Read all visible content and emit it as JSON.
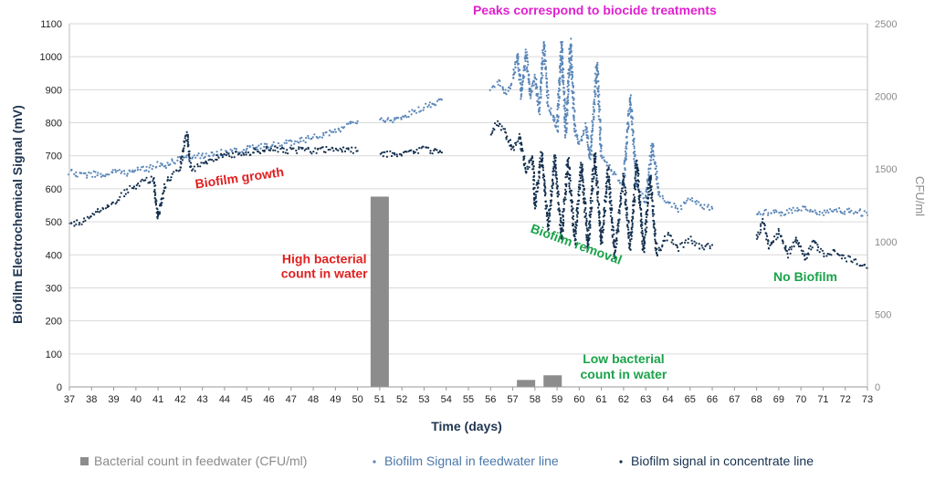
{
  "chart_data": {
    "type": "scatter",
    "title": "",
    "xlabel": "Time (days)",
    "ylabel": "Biofilm  Electrochemical  Signal  (mV)",
    "y2label": "CFU/ml",
    "xlim": [
      37,
      73
    ],
    "ylim": [
      0,
      1100
    ],
    "y2lim": [
      0,
      2500
    ],
    "x_ticks": [
      37,
      38,
      39,
      40,
      41,
      42,
      43,
      44,
      45,
      46,
      47,
      48,
      49,
      50,
      51,
      52,
      53,
      54,
      55,
      56,
      57,
      58,
      59,
      60,
      61,
      62,
      63,
      64,
      65,
      66,
      67,
      68,
      69,
      70,
      71,
      72,
      73
    ],
    "y_ticks": [
      0,
      100,
      200,
      300,
      400,
      500,
      600,
      700,
      800,
      900,
      1000,
      1100
    ],
    "y2_ticks": [
      0,
      500,
      1000,
      1500,
      2000,
      2500
    ],
    "grid": "horizontal",
    "legend_position": "bottom",
    "colors": {
      "bars": "#8c8c8c",
      "feedwater": "#5a86b8",
      "concentrate": "#14304f",
      "red_anno": "#e02020",
      "green_anno": "#1aa34a",
      "magenta_anno": "#e020d0",
      "grid": "#d9d9d9"
    },
    "series": [
      {
        "name": "Bacterial count in feedwater (CFU/ml)",
        "kind": "bar",
        "axis": "right",
        "points": [
          {
            "x": 51.0,
            "y": 1310
          },
          {
            "x": 57.6,
            "y": 48
          },
          {
            "x": 58.8,
            "y": 80
          }
        ]
      },
      {
        "name": "Biofilm Signal in feedwater line",
        "kind": "dots",
        "axis": "left",
        "segments": [
          [
            [
              37,
              650
            ],
            [
              37.5,
              640
            ],
            [
              38,
              645
            ],
            [
              38.5,
              640
            ],
            [
              39,
              650
            ],
            [
              39.5,
              648
            ],
            [
              40,
              655
            ],
            [
              40.5,
              660
            ],
            [
              41,
              672
            ],
            [
              41.3,
              670
            ],
            [
              41.6,
              680
            ],
            [
              42,
              690
            ],
            [
              42.5,
              695
            ],
            [
              43,
              700
            ],
            [
              43.5,
              705
            ],
            [
              44,
              710
            ],
            [
              44.5,
              715
            ],
            [
              45,
              720
            ],
            [
              45.5,
              725
            ],
            [
              46,
              730
            ],
            [
              46.5,
              735
            ],
            [
              47,
              740
            ],
            [
              47.5,
              748
            ],
            [
              48,
              755
            ],
            [
              48.5,
              765
            ],
            [
              49,
              775
            ],
            [
              49.5,
              790
            ],
            [
              50,
              805
            ]
          ],
          [
            [
              51,
              810
            ],
            [
              51.5,
              805
            ],
            [
              52,
              815
            ],
            [
              52.5,
              830
            ],
            [
              53,
              850
            ],
            [
              53.5,
              860
            ],
            [
              53.8,
              870
            ]
          ],
          [
            [
              56,
              905
            ],
            [
              56.4,
              925
            ],
            [
              56.7,
              890
            ],
            [
              57,
              930
            ],
            [
              57.2,
              1010
            ],
            [
              57.4,
              880
            ],
            [
              57.6,
              1015
            ],
            [
              57.8,
              880
            ],
            [
              58,
              945
            ],
            [
              58.2,
              830
            ],
            [
              58.4,
              1040
            ],
            [
              58.6,
              850
            ],
            [
              58.8,
              830
            ],
            [
              59,
              780
            ],
            [
              59.2,
              1045
            ],
            [
              59.4,
              760
            ],
            [
              59.6,
              1045
            ],
            [
              59.8,
              780
            ],
            [
              60,
              735
            ],
            [
              60.3,
              790
            ],
            [
              60.5,
              690
            ],
            [
              60.8,
              985
            ],
            [
              61,
              700
            ],
            [
              61.5,
              650
            ],
            [
              62,
              610
            ],
            [
              62.3,
              880
            ],
            [
              62.6,
              600
            ],
            [
              63,
              560
            ],
            [
              63.3,
              740
            ],
            [
              63.6,
              580
            ],
            [
              64,
              560
            ],
            [
              64.5,
              540
            ],
            [
              65,
              570
            ],
            [
              65.5,
              550
            ],
            [
              66,
              540
            ]
          ],
          [
            [
              68,
              520
            ],
            [
              68.5,
              530
            ],
            [
              69,
              525
            ],
            [
              69.5,
              535
            ],
            [
              70,
              540
            ],
            [
              70.5,
              530
            ],
            [
              71,
              525
            ],
            [
              71.5,
              540
            ],
            [
              72,
              530
            ],
            [
              72.5,
              535
            ],
            [
              73,
              520
            ]
          ]
        ]
      },
      {
        "name": "Biofilm signal in concentrate line",
        "kind": "dots",
        "axis": "left",
        "segments": [
          [
            [
              37,
              490
            ],
            [
              37.5,
              500
            ],
            [
              38,
              515
            ],
            [
              38.5,
              540
            ],
            [
              39,
              560
            ],
            [
              39.5,
              590
            ],
            [
              40,
              610
            ],
            [
              40.5,
              625
            ],
            [
              40.8,
              630
            ],
            [
              41,
              510
            ],
            [
              41.3,
              610
            ],
            [
              41.6,
              640
            ],
            [
              42,
              660
            ],
            [
              42.3,
              770
            ],
            [
              42.5,
              655
            ],
            [
              43,
              675
            ],
            [
              43.5,
              690
            ],
            [
              44,
              700
            ],
            [
              44.5,
              705
            ],
            [
              45,
              710
            ],
            [
              45.5,
              715
            ],
            [
              46,
              720
            ],
            [
              46.5,
              720
            ],
            [
              47,
              715
            ],
            [
              47.5,
              720
            ],
            [
              48,
              715
            ],
            [
              48.5,
              718
            ],
            [
              49,
              720
            ],
            [
              49.5,
              718
            ],
            [
              50,
              715
            ]
          ],
          [
            [
              51,
              700
            ],
            [
              51.5,
              705
            ],
            [
              52,
              710
            ],
            [
              52.5,
              715
            ],
            [
              53,
              720
            ],
            [
              53.5,
              715
            ],
            [
              53.8,
              710
            ]
          ],
          [
            [
              56,
              770
            ],
            [
              56.3,
              800
            ],
            [
              56.6,
              780
            ],
            [
              57,
              720
            ],
            [
              57.3,
              760
            ],
            [
              57.6,
              650
            ],
            [
              57.9,
              700
            ],
            [
              58,
              540
            ],
            [
              58.3,
              710
            ],
            [
              58.6,
              480
            ],
            [
              58.9,
              700
            ],
            [
              59.2,
              450
            ],
            [
              59.5,
              690
            ],
            [
              59.8,
              440
            ],
            [
              60.1,
              680
            ],
            [
              60.4,
              420
            ],
            [
              60.7,
              710
            ],
            [
              61,
              430
            ],
            [
              61.3,
              660
            ],
            [
              61.6,
              400
            ],
            [
              62,
              640
            ],
            [
              62.3,
              420
            ],
            [
              62.6,
              680
            ],
            [
              62.9,
              410
            ],
            [
              63.2,
              640
            ],
            [
              63.5,
              400
            ],
            [
              64,
              460
            ],
            [
              64.5,
              420
            ],
            [
              65,
              450
            ],
            [
              65.5,
              420
            ],
            [
              66,
              430
            ]
          ],
          [
            [
              68,
              450
            ],
            [
              68.3,
              500
            ],
            [
              68.6,
              420
            ],
            [
              69,
              470
            ],
            [
              69.4,
              400
            ],
            [
              69.8,
              450
            ],
            [
              70.2,
              390
            ],
            [
              70.6,
              440
            ],
            [
              71,
              400
            ],
            [
              71.5,
              410
            ],
            [
              72,
              390
            ],
            [
              72.5,
              380
            ],
            [
              73,
              360
            ]
          ]
        ]
      }
    ],
    "annotations": [
      {
        "text": "Biofilm  growth",
        "x": 44.7,
        "y": 620,
        "color": "red",
        "rotate": -8
      },
      {
        "text": "High bacterial",
        "x": 48.5,
        "y": 375,
        "color": "red",
        "rotate": 0
      },
      {
        "text": "count in water",
        "x": 48.5,
        "y": 330,
        "color": "red",
        "rotate": 0
      },
      {
        "text": "Peaks correspond to biocide treatments",
        "x": 60.7,
        "y": 1127,
        "color": "magenta",
        "rotate": 0
      },
      {
        "text": "Biofilm  removal",
        "x": 59.8,
        "y": 420,
        "color": "green",
        "rotate": 20
      },
      {
        "text": "No Biofilm",
        "x": 70.2,
        "y": 320,
        "color": "green",
        "rotate": 0
      },
      {
        "text": "Low bacterial",
        "x": 62.0,
        "y": 72,
        "color": "green",
        "rotate": 0
      },
      {
        "text": "count in water",
        "x": 62.0,
        "y": 25,
        "color": "green",
        "rotate": 0
      }
    ]
  }
}
